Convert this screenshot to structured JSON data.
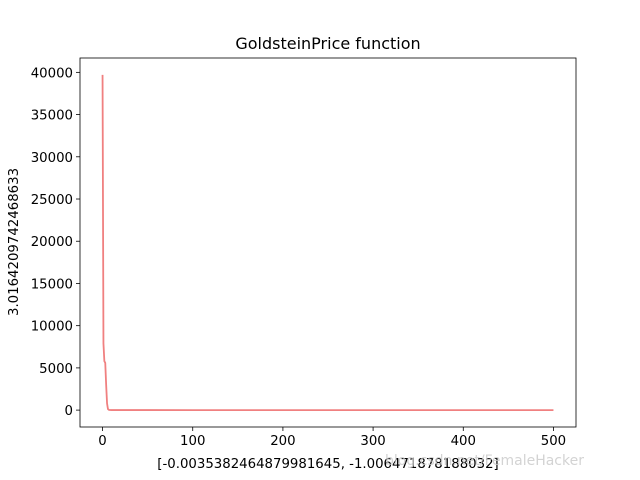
{
  "chart_data": {
    "type": "line",
    "title": "GoldsteinPrice function",
    "xlabel": "[-0.0035382464879981645, -1.006471878188032]",
    "ylabel": "3.0164209742468633",
    "xlim": [
      -25,
      525
    ],
    "ylim": [
      -2000,
      41700
    ],
    "xticks": [
      0,
      100,
      200,
      300,
      400,
      500
    ],
    "yticks": [
      0,
      5000,
      10000,
      15000,
      20000,
      25000,
      30000,
      35000,
      40000
    ],
    "line_color": "#f08080",
    "grid": false,
    "series": [
      {
        "x": [
          0,
          1,
          2,
          3,
          4,
          5,
          6,
          7,
          8,
          10,
          20,
          50,
          100,
          200,
          300,
          400,
          500
        ],
        "y": [
          39700,
          7900,
          5800,
          5600,
          3000,
          800,
          120,
          30,
          10,
          5,
          4,
          3.5,
          3.2,
          3.1,
          3.05,
          3.02,
          3.02
        ]
      }
    ]
  },
  "watermark": "blog.csdn.net/FemaleHacker"
}
